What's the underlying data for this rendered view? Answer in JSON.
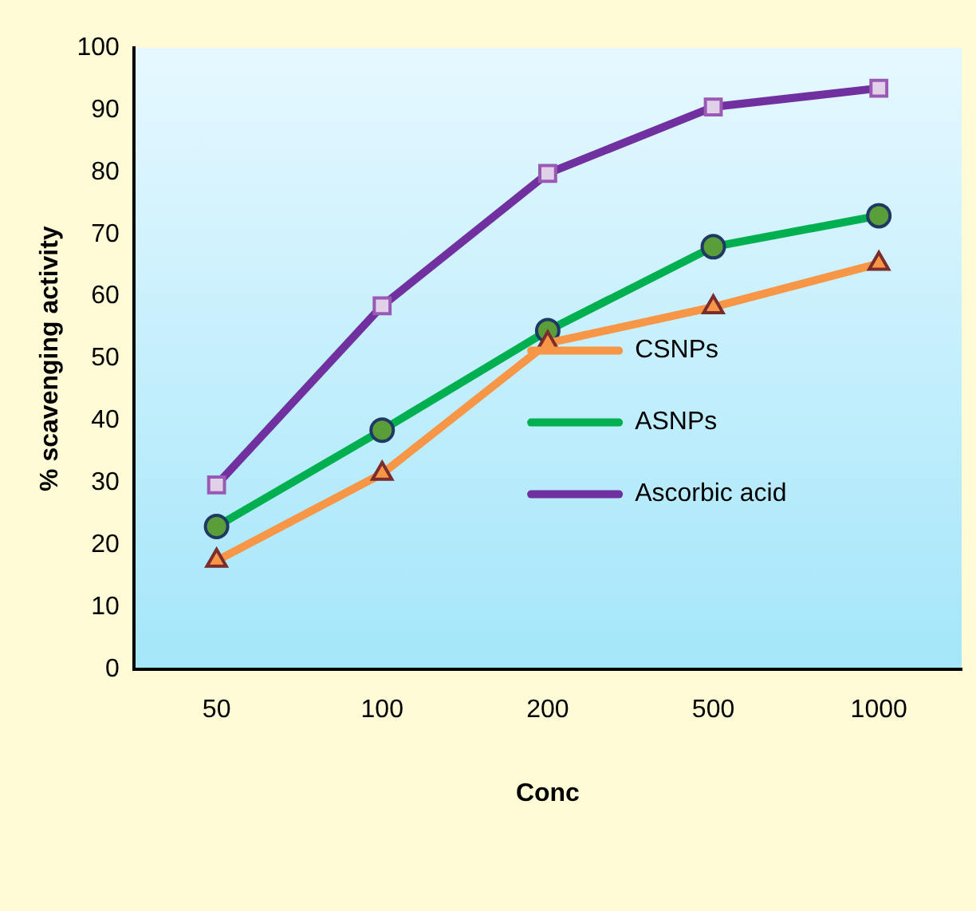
{
  "chart_data": {
    "type": "line",
    "xlabel": "Conc",
    "ylabel": "% scavenging activity",
    "categories": [
      "50",
      "100",
      "200",
      "500",
      "1000"
    ],
    "ylim": [
      0,
      100
    ],
    "yticks": [
      0,
      10,
      20,
      30,
      40,
      50,
      60,
      70,
      80,
      90,
      100
    ],
    "grid": false,
    "legend": "right",
    "series": [
      {
        "name": "CSNPs",
        "color": "#f79646",
        "marker": "triangle",
        "values": [
          17.5,
          31.5,
          52.5,
          58.3,
          65.3
        ]
      },
      {
        "name": "ASNPs",
        "color": "#00b050",
        "marker": "circle",
        "values": [
          23,
          38.5,
          54.5,
          68,
          73
        ]
      },
      {
        "name": "Ascorbic acid",
        "color": "#7030a0",
        "marker": "square",
        "values": [
          29.7,
          58.5,
          79.8,
          90.5,
          93.5
        ]
      }
    ]
  }
}
